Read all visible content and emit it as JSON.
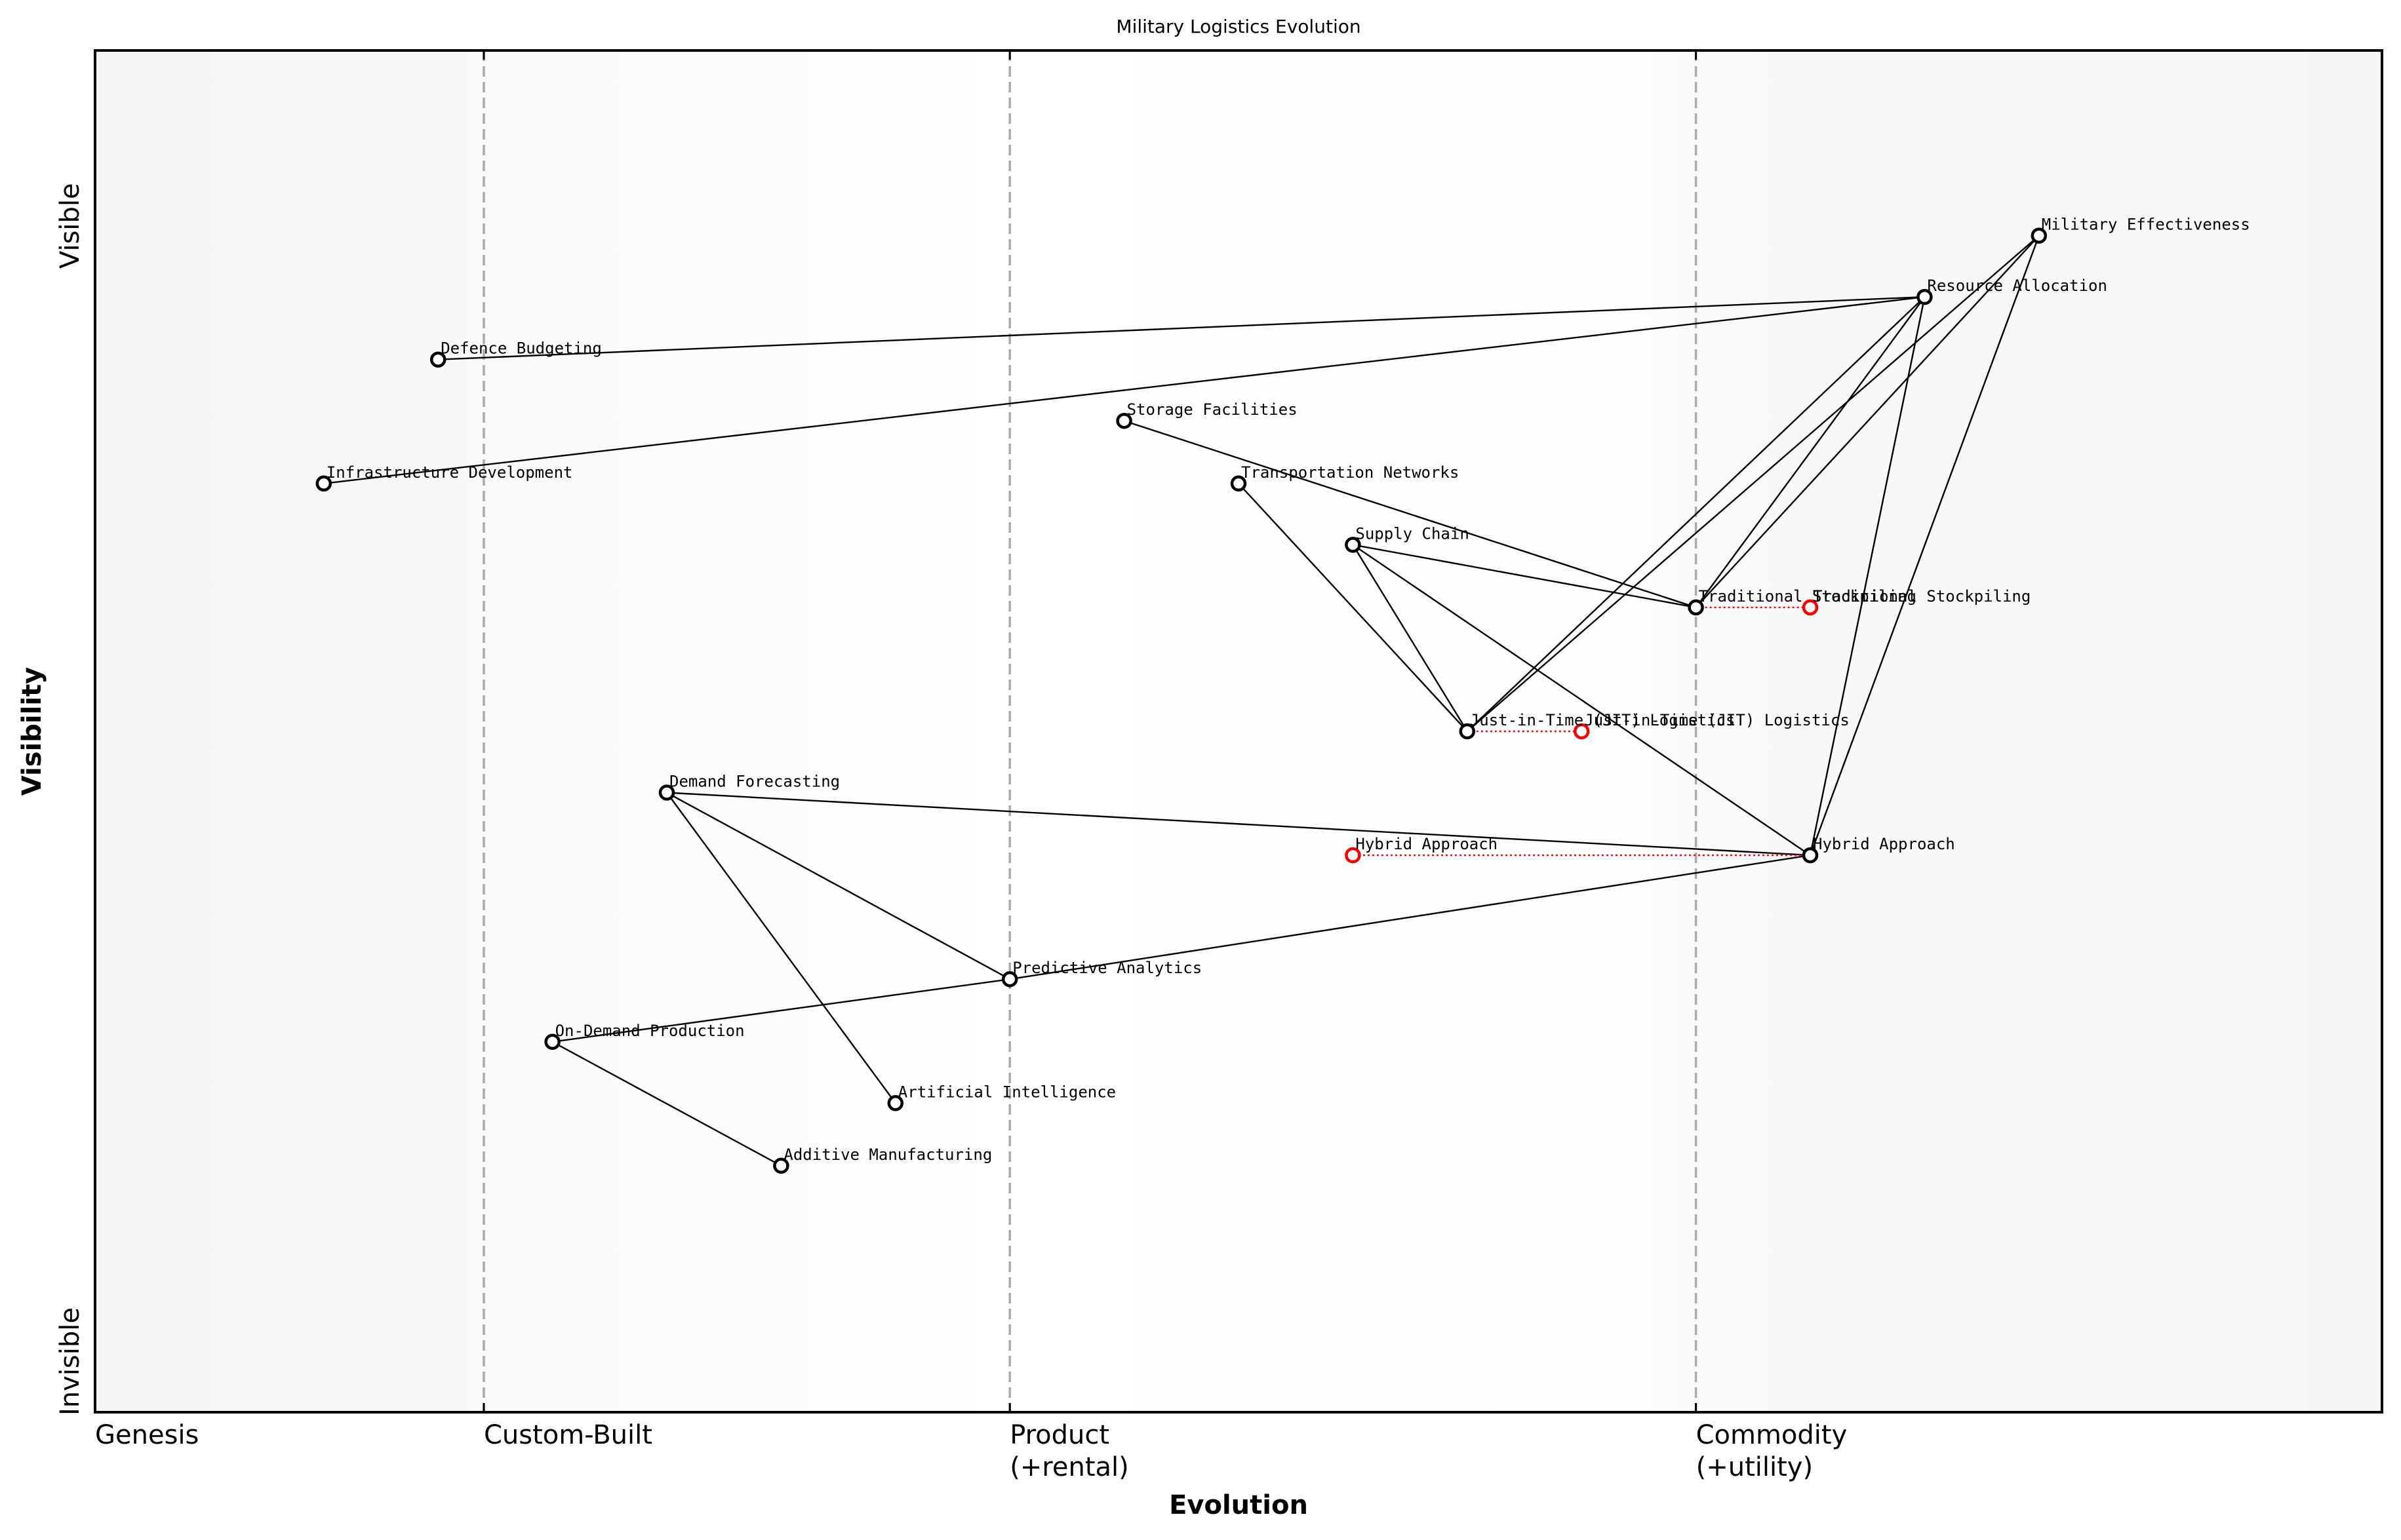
{
  "chart_data": {
    "type": "wardley-map",
    "title": "Military Logistics Evolution",
    "xlabel": "Evolution",
    "ylabel": "Visibility",
    "y_end_labels": {
      "top": "Visible",
      "bottom": "Invisible"
    },
    "xlim": [
      0,
      1
    ],
    "ylim": [
      0,
      1
    ],
    "stages": [
      {
        "label": "Genesis",
        "label_line2": "",
        "x": 0.0,
        "divider": false
      },
      {
        "label": "Custom-Built",
        "label_line2": "",
        "x": 0.17,
        "divider": true
      },
      {
        "label": "Product",
        "label_line2": "(+rental)",
        "x": 0.4,
        "divider": true
      },
      {
        "label": "Commodity",
        "label_line2": "(+utility)",
        "x": 0.7,
        "divider": true
      }
    ],
    "background_gradient": {
      "edge_color": "#f5f5f5",
      "mid_color": "#ffffff"
    },
    "components": [
      {
        "id": "military_effectiveness",
        "label": "Military Effectiveness",
        "x": 0.85,
        "y": 0.864
      },
      {
        "id": "resource_allocation",
        "label": "Resource Allocation",
        "x": 0.8,
        "y": 0.819
      },
      {
        "id": "defence_budgeting",
        "label": "Defence Budgeting",
        "x": 0.15,
        "y": 0.773
      },
      {
        "id": "infrastructure_development",
        "label": "Infrastructure Development",
        "x": 0.1,
        "y": 0.682
      },
      {
        "id": "storage_facilities",
        "label": "Storage Facilities",
        "x": 0.45,
        "y": 0.728
      },
      {
        "id": "transportation_networks",
        "label": "Transportation Networks",
        "x": 0.5,
        "y": 0.682
      },
      {
        "id": "supply_chain",
        "label": "Supply Chain",
        "x": 0.55,
        "y": 0.637
      },
      {
        "id": "traditional_stockpiling",
        "label": "Traditional Stockpiling",
        "x": 0.7,
        "y": 0.591
      },
      {
        "id": "jit_logistics",
        "label": "Just-in-Time (JIT) Logistics",
        "x": 0.6,
        "y": 0.5
      },
      {
        "id": "hybrid_approach",
        "label": "Hybrid Approach",
        "x": 0.75,
        "y": 0.409
      },
      {
        "id": "demand_forecasting",
        "label": "Demand Forecasting",
        "x": 0.25,
        "y": 0.455
      },
      {
        "id": "predictive_analytics",
        "label": "Predictive Analytics",
        "x": 0.4,
        "y": 0.318
      },
      {
        "id": "on_demand_production",
        "label": "On-Demand Production",
        "x": 0.2,
        "y": 0.272
      },
      {
        "id": "artificial_intelligence",
        "label": "Artificial Intelligence",
        "x": 0.35,
        "y": 0.227
      },
      {
        "id": "additive_manufacturing",
        "label": "Additive Manufacturing",
        "x": 0.3,
        "y": 0.181
      }
    ],
    "evolved_components": [
      {
        "from": "traditional_stockpiling",
        "label": "Traditional Stockpiling",
        "x": 0.75,
        "y": 0.591,
        "color": "#ff0000"
      },
      {
        "from": "jit_logistics",
        "label": "Just-in-Time (JIT) Logistics",
        "x": 0.65,
        "y": 0.5,
        "color": "#ff0000"
      },
      {
        "from": "hybrid_approach",
        "label": "Hybrid Approach",
        "x": 0.55,
        "y": 0.409,
        "color": "#ff0000"
      }
    ],
    "links": [
      [
        "resource_allocation",
        "defence_budgeting"
      ],
      [
        "resource_allocation",
        "infrastructure_development"
      ],
      [
        "resource_allocation",
        "jit_logistics"
      ],
      [
        "resource_allocation",
        "traditional_stockpiling"
      ],
      [
        "resource_allocation",
        "hybrid_approach"
      ],
      [
        "military_effectiveness",
        "jit_logistics"
      ],
      [
        "military_effectiveness",
        "traditional_stockpiling"
      ],
      [
        "military_effectiveness",
        "hybrid_approach"
      ],
      [
        "supply_chain",
        "traditional_stockpiling"
      ],
      [
        "supply_chain",
        "jit_logistics"
      ],
      [
        "supply_chain",
        "hybrid_approach"
      ],
      [
        "storage_facilities",
        "traditional_stockpiling"
      ],
      [
        "transportation_networks",
        "jit_logistics"
      ],
      [
        "demand_forecasting",
        "hybrid_approach"
      ],
      [
        "demand_forecasting",
        "predictive_analytics"
      ],
      [
        "demand_forecasting",
        "artificial_intelligence"
      ],
      [
        "predictive_analytics",
        "hybrid_approach"
      ],
      [
        "predictive_analytics",
        "on_demand_production"
      ],
      [
        "on_demand_production",
        "additive_manufacturing"
      ]
    ],
    "colors": {
      "node_stroke": "#000000",
      "node_fill": "#ffffff",
      "evolved_stroke": "#ff0000",
      "divider": "#aaaaaa",
      "link": "#000000"
    }
  }
}
